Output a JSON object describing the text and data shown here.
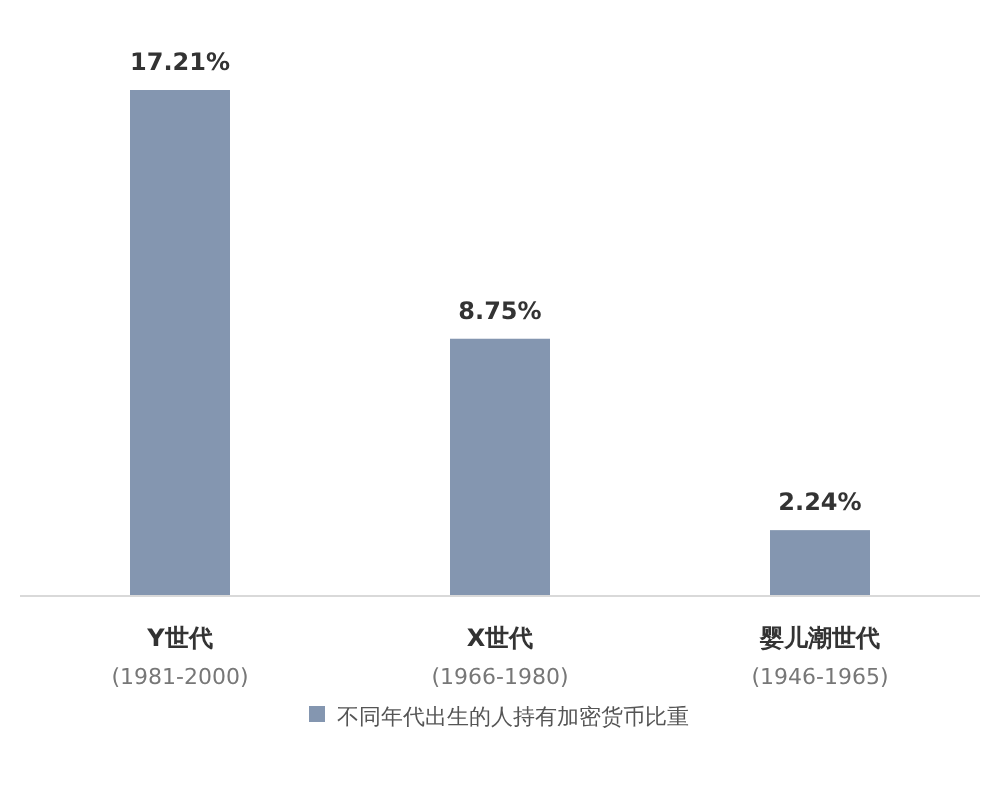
{
  "chart_data": {
    "type": "bar",
    "categories": [
      "Y世代\n(1981-2000)",
      "X世代\n(1966-1980)",
      "婴儿潮世代\n(1946-1965)"
    ],
    "series": [
      {
        "name": "不同年代出生的人持有加密货币比重",
        "color": "#8496b0",
        "values": [
          17.21,
          8.75,
          2.24
        ],
        "value_labels": [
          "17.21%",
          "8.75%",
          "2.24%"
        ]
      }
    ],
    "legend": "bottom"
  }
}
